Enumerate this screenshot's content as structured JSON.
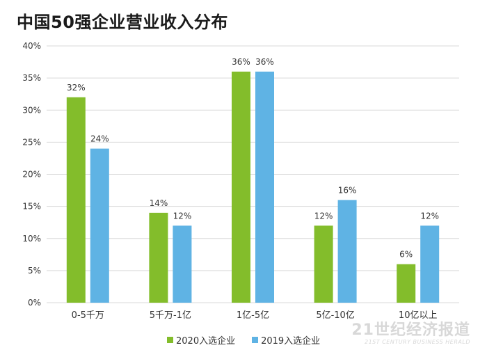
{
  "title": "中国50强企业营业收入分布",
  "watermark": {
    "main": "21世纪经济报道",
    "sub": "21ST CENTURY BUSINESS HERALD"
  },
  "colors": {
    "series_2020": "#83bd2b",
    "series_2019": "#5fb3e4",
    "grid": "#d9d9d9",
    "text": "#333333"
  },
  "chart_data": {
    "type": "bar",
    "title": "中国50强企业营业收入分布",
    "categories": [
      "0-5千万",
      "5千万-1亿",
      "1亿-5亿",
      "5亿-10亿",
      "10亿以上"
    ],
    "series": [
      {
        "name": "2020入选企业",
        "values": [
          32,
          14,
          36,
          12,
          6
        ],
        "labels": [
          "32%",
          "14%",
          "36%",
          "12%",
          "6%"
        ]
      },
      {
        "name": "2019入选企业",
        "values": [
          24,
          12,
          36,
          16,
          12
        ],
        "labels": [
          "24%",
          "12%",
          "36%",
          "16%",
          "12%"
        ]
      }
    ],
    "ylim": [
      0,
      40
    ],
    "yticks": [
      "0%",
      "5%",
      "10%",
      "15%",
      "20%",
      "25%",
      "30%",
      "35%",
      "40%"
    ],
    "grid": true,
    "legend": "bottom"
  }
}
